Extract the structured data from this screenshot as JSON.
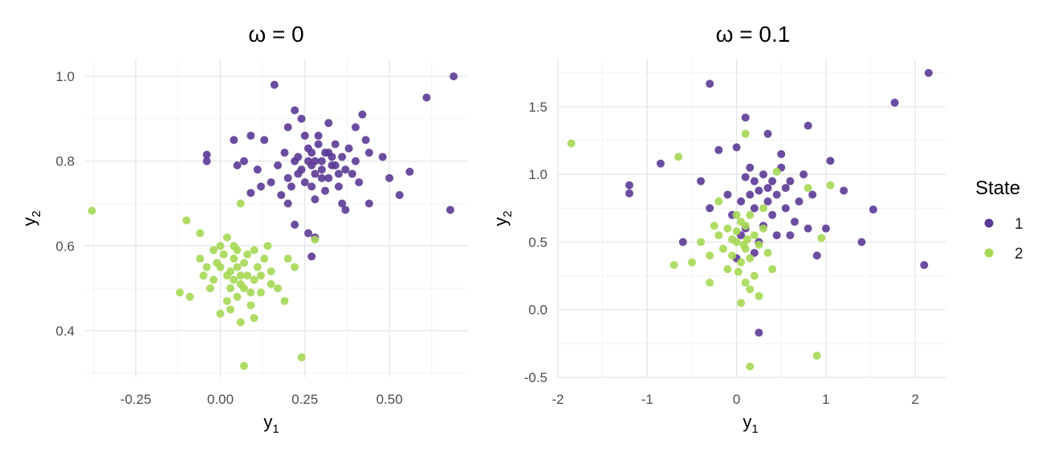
{
  "chart_data": [
    {
      "type": "scatter",
      "title": "ω = 0",
      "xlabel": "y",
      "xlabel_sub": "1",
      "ylabel": "y",
      "ylabel_sub": "2",
      "xlim": [
        -0.4,
        0.73
      ],
      "ylim": [
        0.29,
        1.04
      ],
      "xticks": [
        -0.25,
        0,
        0.25,
        0.5
      ],
      "xtick_labels": [
        "-0.25",
        "0.00",
        "0.25",
        "0.50"
      ],
      "yticks": [
        0.4,
        0.6,
        0.8,
        1.0
      ],
      "ytick_labels": [
        "0.4",
        "0.6",
        "0.8",
        "1.0"
      ],
      "grid": true,
      "series": [
        {
          "name": "1",
          "color": "#5b3a96",
          "points": [
            [
              0.16,
              0.98
            ],
            [
              0.69,
              1.0
            ],
            [
              0.61,
              0.95
            ],
            [
              0.22,
              0.92
            ],
            [
              0.42,
              0.91
            ],
            [
              0.68,
              0.685
            ],
            [
              0.26,
              0.63
            ],
            [
              0.28,
              0.62
            ],
            [
              0.27,
              0.575
            ],
            [
              0.56,
              0.775
            ],
            [
              0.53,
              0.72
            ],
            [
              -0.04,
              0.815
            ],
            [
              -0.04,
              0.8
            ],
            [
              0.04,
              0.85
            ],
            [
              0.09,
              0.86
            ],
            [
              0.13,
              0.85
            ],
            [
              0.43,
              0.85
            ],
            [
              0.4,
              0.88
            ],
            [
              0.2,
              0.88
            ],
            [
              0.24,
              0.9
            ],
            [
              0.32,
              0.89
            ],
            [
              0.09,
              0.725
            ],
            [
              0.12,
              0.74
            ],
            [
              0.15,
              0.75
            ],
            [
              0.44,
              0.7
            ],
            [
              0.36,
              0.7
            ],
            [
              0.2,
              0.7
            ],
            [
              0.22,
              0.65
            ],
            [
              0.28,
              0.71
            ],
            [
              0.37,
              0.685
            ],
            [
              0.48,
              0.81
            ],
            [
              0.5,
              0.76
            ],
            [
              0.05,
              0.79
            ],
            [
              0.07,
              0.8
            ],
            [
              0.11,
              0.78
            ],
            [
              0.31,
              0.82
            ],
            [
              0.3,
              0.8
            ],
            [
              0.27,
              0.79
            ],
            [
              0.33,
              0.79
            ],
            [
              0.28,
              0.77
            ],
            [
              0.25,
              0.75
            ],
            [
              0.32,
              0.76
            ],
            [
              0.36,
              0.81
            ],
            [
              0.23,
              0.81
            ],
            [
              0.26,
              0.83
            ],
            [
              0.29,
              0.84
            ],
            [
              0.34,
              0.84
            ],
            [
              0.37,
              0.78
            ],
            [
              0.4,
              0.8
            ],
            [
              0.24,
              0.78
            ],
            [
              0.22,
              0.8
            ],
            [
              0.19,
              0.82
            ],
            [
              0.2,
              0.76
            ],
            [
              0.35,
              0.74
            ],
            [
              0.31,
              0.73
            ],
            [
              0.27,
              0.74
            ],
            [
              0.39,
              0.77
            ],
            [
              0.44,
              0.82
            ],
            [
              0.17,
              0.79
            ],
            [
              0.29,
              0.86
            ],
            [
              0.25,
              0.86
            ],
            [
              0.33,
              0.81
            ],
            [
              0.3,
              0.76
            ],
            [
              0.26,
              0.8
            ],
            [
              0.28,
              0.8
            ],
            [
              0.32,
              0.82
            ],
            [
              0.35,
              0.77
            ],
            [
              0.23,
              0.77
            ],
            [
              0.21,
              0.74
            ],
            [
              0.38,
              0.83
            ],
            [
              0.41,
              0.75
            ],
            [
              0.18,
              0.72
            ],
            [
              0.3,
              0.78
            ],
            [
              0.27,
              0.82
            ],
            [
              0.34,
              0.79
            ]
          ]
        },
        {
          "name": "2",
          "color": "#a6d854",
          "points": [
            [
              -0.38,
              0.683
            ],
            [
              0.07,
              0.317
            ],
            [
              0.24,
              0.337
            ],
            [
              0.28,
              0.615
            ],
            [
              0.06,
              0.7
            ],
            [
              -0.1,
              0.66
            ],
            [
              -0.06,
              0.63
            ],
            [
              0.14,
              0.6
            ],
            [
              0.2,
              0.57
            ],
            [
              0.17,
              0.5
            ],
            [
              0.19,
              0.47
            ],
            [
              0.22,
              0.55
            ],
            [
              -0.12,
              0.49
            ],
            [
              -0.09,
              0.48
            ],
            [
              0.1,
              0.43
            ],
            [
              0.06,
              0.42
            ],
            [
              0.0,
              0.44
            ],
            [
              0.04,
              0.6
            ],
            [
              0.02,
              0.62
            ],
            [
              -0.02,
              0.52
            ],
            [
              0.0,
              0.55
            ],
            [
              0.02,
              0.53
            ],
            [
              0.05,
              0.55
            ],
            [
              0.07,
              0.56
            ],
            [
              0.08,
              0.53
            ],
            [
              0.03,
              0.5
            ],
            [
              0.06,
              0.51
            ],
            [
              0.1,
              0.52
            ],
            [
              0.04,
              0.57
            ],
            [
              0.01,
              0.58
            ],
            [
              -0.01,
              0.56
            ],
            [
              0.08,
              0.58
            ],
            [
              0.11,
              0.55
            ],
            [
              0.12,
              0.53
            ],
            [
              0.09,
              0.49
            ],
            [
              0.05,
              0.48
            ],
            [
              0.02,
              0.47
            ],
            [
              -0.03,
              0.5
            ],
            [
              -0.05,
              0.53
            ],
            [
              0.03,
              0.54
            ],
            [
              0.06,
              0.53
            ],
            [
              0.04,
              0.52
            ],
            [
              0.07,
              0.5
            ],
            [
              0.13,
              0.57
            ],
            [
              0.15,
              0.54
            ],
            [
              -0.04,
              0.55
            ],
            [
              0.0,
              0.6
            ],
            [
              0.1,
              0.59
            ],
            [
              0.09,
              0.46
            ],
            [
              0.03,
              0.45
            ],
            [
              -0.06,
              0.57
            ],
            [
              0.12,
              0.49
            ],
            [
              0.15,
              0.51
            ],
            [
              0.05,
              0.59
            ],
            [
              -0.02,
              0.59
            ]
          ]
        }
      ]
    },
    {
      "type": "scatter",
      "title": "ω = 0.1",
      "xlabel": "y",
      "xlabel_sub": "1",
      "ylabel": "y",
      "ylabel_sub": "2",
      "xlim": [
        -2.0,
        2.34
      ],
      "ylim": [
        -0.5,
        1.85
      ],
      "xticks": [
        -2,
        -1,
        0,
        1,
        2
      ],
      "xtick_labels": [
        "-2",
        "-1",
        "0",
        "1",
        "2"
      ],
      "yticks": [
        -0.5,
        0.0,
        0.5,
        1.0,
        1.5
      ],
      "ytick_labels": [
        "-0.5",
        "0.0",
        "0.5",
        "1.0",
        "1.5"
      ],
      "grid": true,
      "series": [
        {
          "name": "1",
          "color": "#5b3a96",
          "points": [
            [
              2.15,
              1.75
            ],
            [
              1.77,
              1.53
            ],
            [
              -0.3,
              1.67
            ],
            [
              2.1,
              0.33
            ],
            [
              0.1,
              1.42
            ],
            [
              -1.2,
              0.92
            ],
            [
              -1.2,
              0.86
            ],
            [
              0.25,
              -0.17
            ],
            [
              0.0,
              0.38
            ],
            [
              -0.85,
              1.08
            ],
            [
              -0.6,
              0.5
            ],
            [
              1.4,
              0.5
            ],
            [
              1.53,
              0.74
            ],
            [
              1.05,
              1.1
            ],
            [
              1.2,
              0.88
            ],
            [
              0.8,
              1.36
            ],
            [
              0.35,
              1.3
            ],
            [
              0.0,
              1.2
            ],
            [
              0.5,
              1.15
            ],
            [
              -0.2,
              1.18
            ],
            [
              0.9,
              0.4
            ],
            [
              1.0,
              0.6
            ],
            [
              -0.4,
              0.95
            ],
            [
              0.2,
              0.95
            ],
            [
              0.35,
              0.9
            ],
            [
              0.45,
              0.85
            ],
            [
              0.6,
              0.95
            ],
            [
              0.3,
              1.0
            ],
            [
              0.15,
              0.85
            ],
            [
              0.55,
              0.75
            ],
            [
              0.7,
              0.8
            ],
            [
              0.4,
              0.7
            ],
            [
              0.2,
              0.75
            ],
            [
              0.5,
              1.05
            ],
            [
              0.75,
              1.0
            ],
            [
              0.1,
              0.98
            ],
            [
              0.85,
              0.85
            ],
            [
              0.65,
              0.65
            ],
            [
              0.05,
              0.8
            ],
            [
              -0.1,
              0.85
            ],
            [
              0.3,
              0.62
            ],
            [
              0.45,
              0.55
            ],
            [
              0.25,
              0.5
            ],
            [
              0.1,
              0.6
            ],
            [
              -0.05,
              0.7
            ],
            [
              0.6,
              0.55
            ],
            [
              0.35,
              0.8
            ],
            [
              0.15,
              1.05
            ],
            [
              -0.3,
              0.75
            ],
            [
              0.8,
              0.6
            ],
            [
              0.4,
              0.95
            ],
            [
              0.25,
              0.88
            ],
            [
              0.55,
              0.9
            ],
            [
              0.05,
              0.55
            ],
            [
              0.2,
              0.42
            ]
          ]
        },
        {
          "name": "2",
          "color": "#a6d854",
          "points": [
            [
              -1.85,
              1.23
            ],
            [
              0.9,
              -0.34
            ],
            [
              0.15,
              -0.42
            ],
            [
              0.1,
              1.3
            ],
            [
              -0.65,
              1.13
            ],
            [
              -0.5,
              0.35
            ],
            [
              -0.7,
              0.33
            ],
            [
              0.95,
              0.53
            ],
            [
              1.05,
              0.92
            ],
            [
              0.8,
              0.9
            ],
            [
              0.45,
              1.02
            ],
            [
              -0.3,
              0.2
            ],
            [
              0.05,
              0.05
            ],
            [
              0.25,
              0.1
            ],
            [
              0.15,
              0.15
            ],
            [
              -0.2,
              0.55
            ],
            [
              -0.1,
              0.6
            ],
            [
              0.0,
              0.5
            ],
            [
              0.1,
              0.45
            ],
            [
              0.05,
              0.65
            ],
            [
              -0.05,
              0.4
            ],
            [
              0.2,
              0.55
            ],
            [
              0.15,
              0.38
            ],
            [
              0.0,
              0.7
            ],
            [
              -0.15,
              0.45
            ],
            [
              0.1,
              0.62
            ],
            [
              0.25,
              0.48
            ],
            [
              -0.25,
              0.62
            ],
            [
              0.3,
              0.6
            ],
            [
              0.05,
              0.35
            ],
            [
              -0.1,
              0.3
            ],
            [
              0.2,
              0.25
            ],
            [
              0.35,
              0.42
            ],
            [
              0.0,
              0.58
            ],
            [
              0.12,
              0.52
            ],
            [
              -0.3,
              0.4
            ],
            [
              -0.4,
              0.5
            ],
            [
              0.4,
              0.3
            ],
            [
              0.1,
              0.2
            ],
            [
              -0.2,
              0.8
            ],
            [
              0.3,
              0.75
            ],
            [
              0.15,
              0.7
            ],
            [
              -0.05,
              0.52
            ],
            [
              0.08,
              0.48
            ],
            [
              0.02,
              0.28
            ]
          ]
        }
      ]
    }
  ],
  "legend": {
    "title": "State",
    "items": [
      {
        "label": "1",
        "color": "#5b3a96"
      },
      {
        "label": "2",
        "color": "#a6d854"
      }
    ]
  }
}
